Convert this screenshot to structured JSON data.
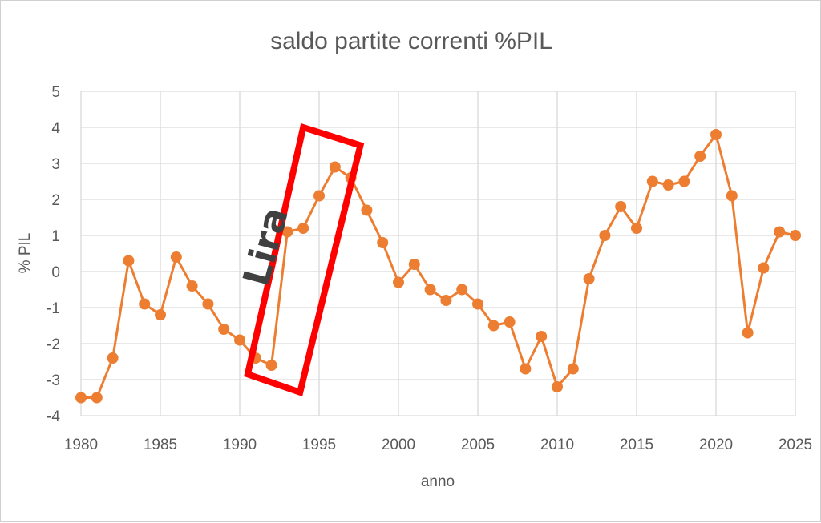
{
  "chart_data": {
    "type": "line",
    "title": "saldo partite correnti %PIL",
    "xlabel": "anno",
    "ylabel": "% PIL",
    "xlim": [
      1980,
      2025
    ],
    "ylim": [
      -4,
      5
    ],
    "xticks": [
      1980,
      1985,
      1990,
      1995,
      2000,
      2005,
      2010,
      2015,
      2020,
      2025
    ],
    "yticks": [
      -4,
      -3,
      -2,
      -1,
      0,
      1,
      2,
      3,
      4,
      5
    ],
    "grid": true,
    "legend": "none",
    "series": [
      {
        "color": "#ED7D31",
        "x": [
          1980,
          1981,
          1982,
          1983,
          1984,
          1985,
          1986,
          1987,
          1988,
          1989,
          1990,
          1991,
          1992,
          1993,
          1994,
          1995,
          1996,
          1997,
          1998,
          1999,
          2000,
          2001,
          2002,
          2003,
          2004,
          2005,
          2006,
          2007,
          2008,
          2009,
          2010,
          2011,
          2012,
          2013,
          2014,
          2015,
          2016,
          2017,
          2018,
          2019,
          2020,
          2021,
          2022,
          2023,
          2024,
          2025
        ],
        "y": [
          -3.5,
          -3.5,
          -2.4,
          0.3,
          -0.9,
          -1.2,
          0.4,
          -0.4,
          -0.9,
          -1.6,
          -1.9,
          -2.4,
          -2.6,
          1.1,
          1.2,
          2.1,
          2.9,
          2.6,
          1.7,
          0.8,
          -0.3,
          0.2,
          -0.5,
          -0.8,
          -0.5,
          -0.9,
          -1.5,
          -1.4,
          -2.7,
          -1.8,
          -3.2,
          -2.7,
          -0.2,
          1.0,
          1.8,
          1.2,
          2.5,
          2.4,
          2.5,
          3.2,
          3.8,
          2.1,
          -1.7,
          0.1,
          1.1,
          1.0
        ]
      }
    ],
    "annotations": [
      {
        "text": "Lira",
        "x_range": [
          1990.5,
          1996
        ],
        "color": "#FF0000"
      }
    ]
  }
}
